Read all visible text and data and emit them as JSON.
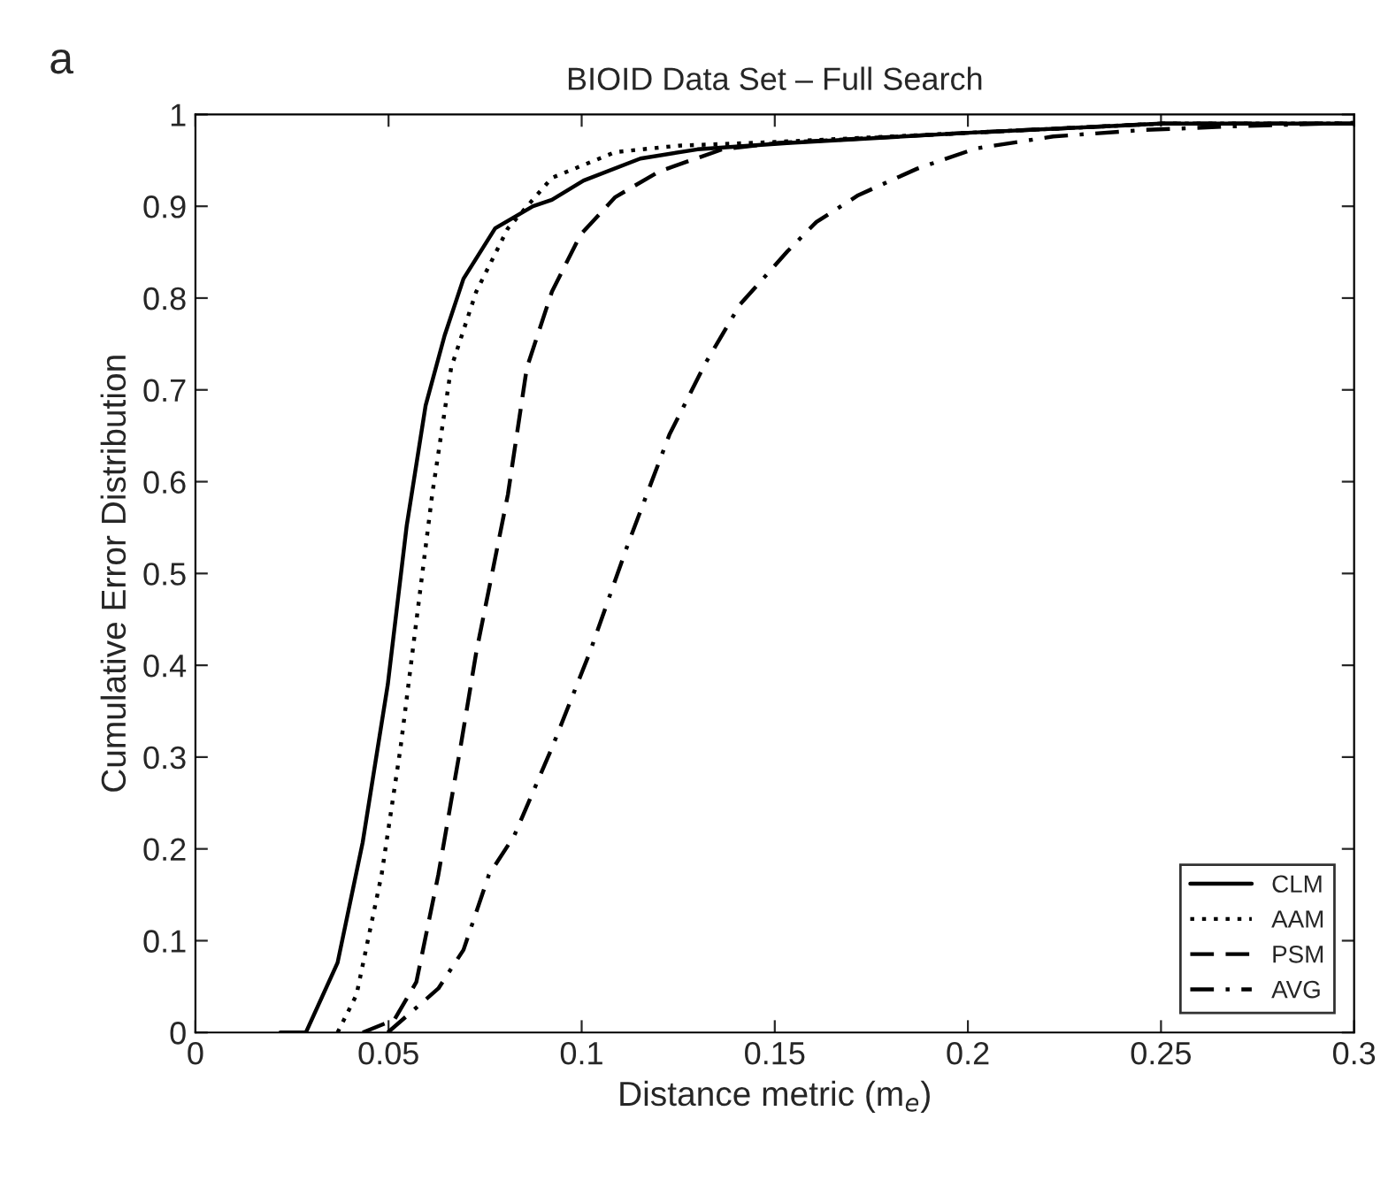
{
  "chart_data": {
    "type": "line",
    "title": "BIOID Data Set – Full Search",
    "xlabel": "Distance metric (m$_{e}$)",
    "ylabel": "Cumulative Error Distribution",
    "annotations": [
      "a"
    ],
    "xlim": [
      0,
      0.3
    ],
    "ylim": [
      0,
      1
    ],
    "xticks": [
      0,
      0.05,
      0.1,
      0.15,
      0.2,
      0.25,
      0.3
    ],
    "yticks": [
      0,
      0.1,
      0.2,
      0.3,
      0.4,
      0.5,
      0.6,
      0.7,
      0.8,
      0.9,
      1
    ],
    "grid": false,
    "legend": "bottom right",
    "series": [
      {
        "name": "CLM",
        "color": "#000000",
        "line_style": "solid",
        "x": [
          0.022,
          0.0286,
          0.0368,
          0.0433,
          0.0498,
          0.0547,
          0.0596,
          0.0645,
          0.0694,
          0.0776,
          0.0874,
          0.0923,
          0.1005,
          0.1152,
          0.13,
          0.154,
          0.2,
          0.25,
          0.3
        ],
        "values": [
          0,
          0,
          0.076,
          0.207,
          0.379,
          0.552,
          0.683,
          0.759,
          0.821,
          0.876,
          0.9,
          0.907,
          0.928,
          0.952,
          0.962,
          0.969,
          0.98,
          0.99,
          0.99
        ]
      },
      {
        "name": "AAM",
        "color": "#000000",
        "line_style": "dotted",
        "x": [
          0.0368,
          0.0417,
          0.0482,
          0.0531,
          0.0572,
          0.0613,
          0.0662,
          0.0727,
          0.0809,
          0.0923,
          0.1087,
          0.125,
          0.15,
          0.2,
          0.25,
          0.3
        ],
        "values": [
          0,
          0.041,
          0.172,
          0.31,
          0.448,
          0.586,
          0.724,
          0.807,
          0.876,
          0.931,
          0.959,
          0.966,
          0.97,
          0.98,
          0.99,
          0.99
        ]
      },
      {
        "name": "PSM",
        "color": "#000000",
        "line_style": "dashed",
        "x": [
          0.0433,
          0.0515,
          0.0572,
          0.0629,
          0.0686,
          0.0727,
          0.076,
          0.0809,
          0.0858,
          0.0923,
          0.0997,
          0.1087,
          0.1201,
          0.1364,
          0.151,
          0.2,
          0.25,
          0.3
        ],
        "values": [
          0,
          0.014,
          0.055,
          0.172,
          0.31,
          0.414,
          0.483,
          0.586,
          0.724,
          0.807,
          0.869,
          0.91,
          0.938,
          0.962,
          0.969,
          0.98,
          0.99,
          0.99
        ]
      },
      {
        "name": "AVG",
        "color": "#000000",
        "line_style": "dashdot",
        "x": [
          0.0498,
          0.0629,
          0.0694,
          0.076,
          0.0825,
          0.0923,
          0.1021,
          0.1119,
          0.1227,
          0.1319,
          0.141,
          0.1533,
          0.1608,
          0.1716,
          0.1869,
          0.2021,
          0.2221,
          0.245,
          0.268,
          0.3
        ],
        "values": [
          0,
          0.048,
          0.09,
          0.172,
          0.214,
          0.31,
          0.414,
          0.531,
          0.651,
          0.728,
          0.793,
          0.851,
          0.883,
          0.912,
          0.941,
          0.963,
          0.976,
          0.983,
          0.987,
          0.991
        ]
      }
    ]
  }
}
